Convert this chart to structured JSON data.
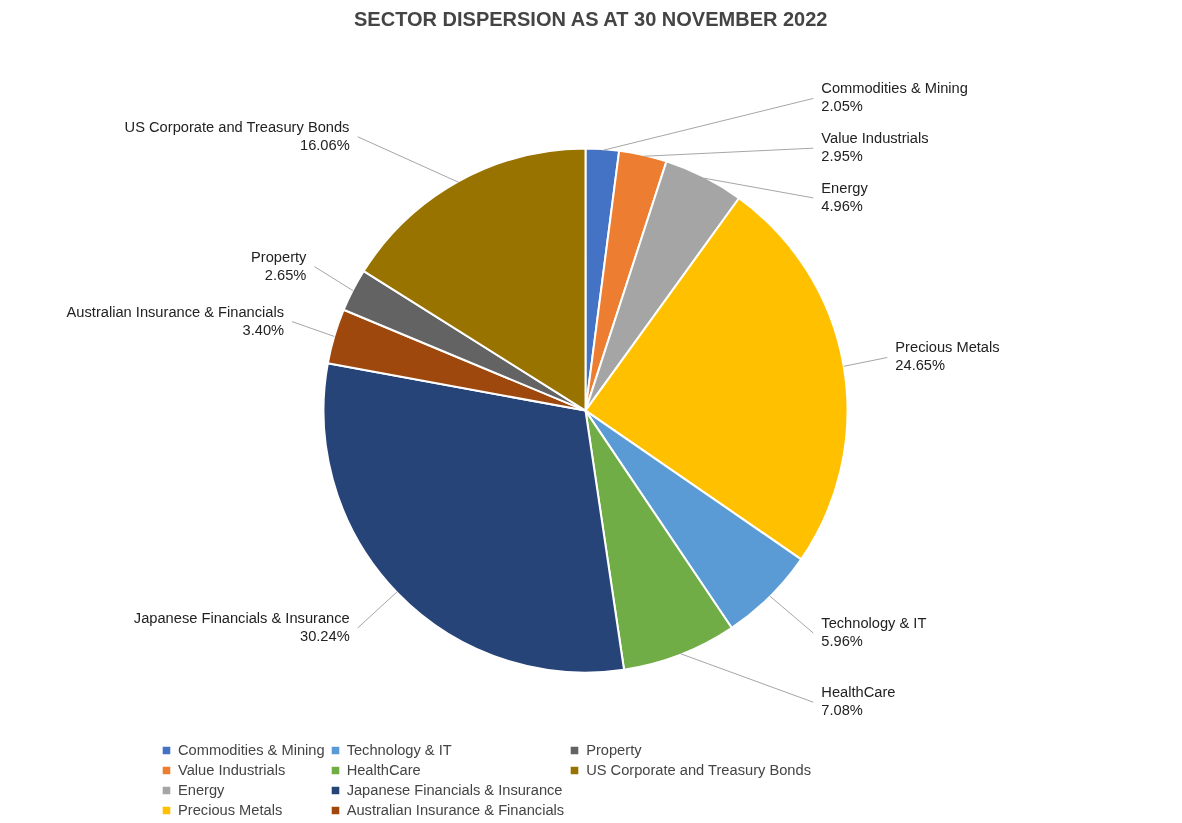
{
  "chart_data": {
    "type": "pie",
    "title": "SECTOR DISPERSION AS AT 30 NOVEMBER 2022",
    "categories": [
      "Commodities & Mining",
      "Value Industrials",
      "Energy",
      "Precious Metals",
      "Technology & IT",
      "HealthCare",
      "Japanese Financials & Insurance",
      "Australian Insurance & Financials",
      "Property",
      "US Corporate and Treasury Bonds"
    ],
    "values": [
      2.05,
      2.95,
      4.96,
      24.65,
      5.96,
      7.08,
      30.24,
      3.4,
      2.65,
      16.06
    ],
    "value_labels": [
      "2.05%",
      "2.95%",
      "4.96%",
      "24.65%",
      "5.96%",
      "7.08%",
      "30.24%",
      "3.40%",
      "2.65%",
      "16.06%"
    ],
    "colors": [
      "#4472c4",
      "#ed7d31",
      "#a5a5a5",
      "#ffc000",
      "#5b9bd5",
      "#70ad47",
      "#264478",
      "#9e480e",
      "#636363",
      "#997300"
    ],
    "legend": "bottom"
  }
}
